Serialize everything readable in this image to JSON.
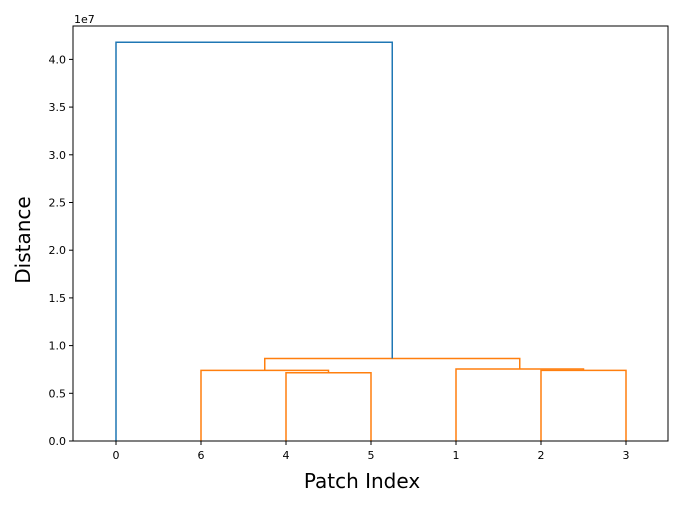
{
  "chart_data": {
    "type": "dendrogram",
    "title": "",
    "xlabel": "Patch Index",
    "ylabel": "Distance",
    "y_offset_label": "1e7",
    "ylim": [
      0,
      43500000
    ],
    "y_ticks": [
      "0.0",
      "0.5",
      "1.0",
      "1.5",
      "2.0",
      "2.5",
      "3.0",
      "3.5",
      "4.0"
    ],
    "y_tick_values": [
      0,
      5000000,
      10000000,
      15000000,
      20000000,
      25000000,
      30000000,
      35000000,
      40000000
    ],
    "leaf_order": [
      "0",
      "6",
      "4",
      "5",
      "1",
      "2",
      "3"
    ],
    "merges": [
      {
        "left": "4",
        "right": "5",
        "distance": 7150000,
        "color": "#ff7f0e"
      },
      {
        "left": "6",
        "right": "(4,5)",
        "distance": 7400000,
        "color": "#ff7f0e"
      },
      {
        "left": "2",
        "right": "3",
        "distance": 7400000,
        "color": "#ff7f0e"
      },
      {
        "left": "1",
        "right": "(2,3)",
        "distance": 7550000,
        "color": "#ff7f0e"
      },
      {
        "left": "(6,4,5)",
        "right": "(1,2,3)",
        "distance": 8650000,
        "color": "#ff7f0e"
      },
      {
        "left": "0",
        "right": "(6,4,5,1,2,3)",
        "distance": 41800000,
        "color": "#1f77b4"
      }
    ],
    "colors": {
      "cluster": "#ff7f0e",
      "above_threshold": "#1f77b4"
    },
    "grid": false
  }
}
